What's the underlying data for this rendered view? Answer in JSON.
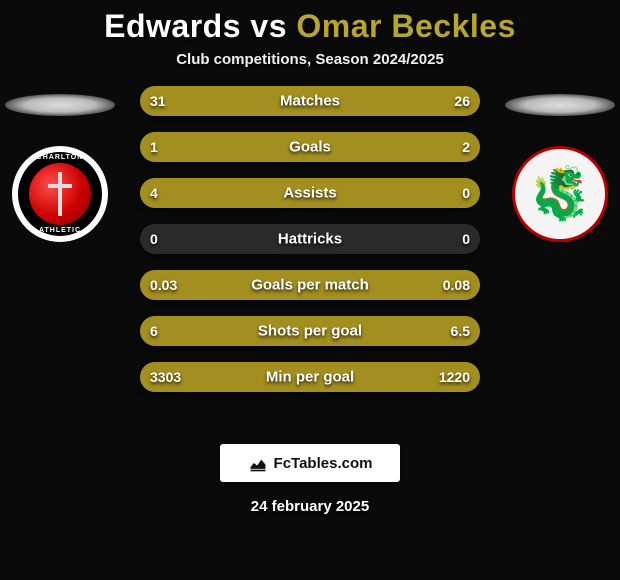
{
  "title": {
    "player1": "Edwards",
    "vs": " vs ",
    "player2": "Omar Beckles",
    "player1_color": "#ffffff",
    "player2_color": "#b8a62a"
  },
  "subtitle": "Club competitions, Season 2024/2025",
  "date": "24 february 2025",
  "site": "FcTables.com",
  "crest_left": {
    "top_text": "CHARLTON",
    "bottom_text": "ATHLETIC"
  },
  "stats": {
    "bar_color_left": "#a38f1f",
    "bar_color_right": "#a38f1f",
    "bar_bg": "#2a2a2a",
    "rows": [
      {
        "label": "Matches",
        "left": "31",
        "right": "26",
        "left_pct": 54,
        "right_pct": 46
      },
      {
        "label": "Goals",
        "left": "1",
        "right": "2",
        "left_pct": 33,
        "right_pct": 67
      },
      {
        "label": "Assists",
        "left": "4",
        "right": "0",
        "left_pct": 100,
        "right_pct": 0
      },
      {
        "label": "Hattricks",
        "left": "0",
        "right": "0",
        "left_pct": 0,
        "right_pct": 0
      },
      {
        "label": "Goals per match",
        "left": "0.03",
        "right": "0.08",
        "left_pct": 27,
        "right_pct": 73
      },
      {
        "label": "Shots per goal",
        "left": "6",
        "right": "6.5",
        "left_pct": 48,
        "right_pct": 52
      },
      {
        "label": "Min per goal",
        "left": "3303",
        "right": "1220",
        "left_pct": 73,
        "right_pct": 27
      }
    ]
  }
}
